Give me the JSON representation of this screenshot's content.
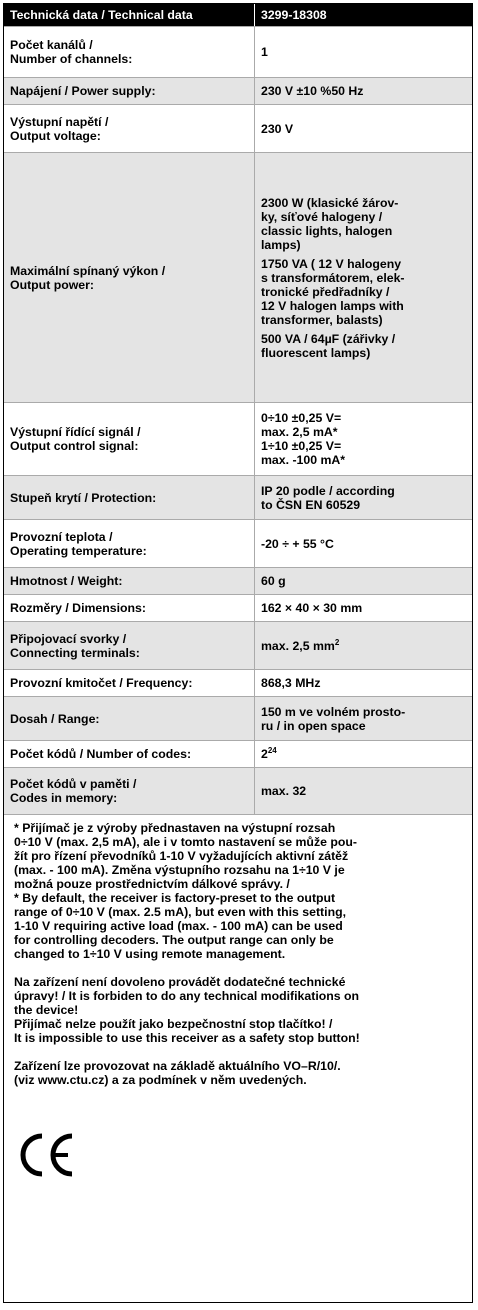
{
  "header": [
    "Technická data / Technical data",
    "3299-18308"
  ],
  "rows": [
    {
      "label": "Počet kanálů /\nNumber of channels:",
      "value": [
        "1"
      ]
    },
    {
      "label": "Napájení / Power supply:",
      "value": [
        "230 V ±10 %50 Hz"
      ]
    },
    {
      "label": "Výstupní napětí /\nOutput voltage:",
      "value": [
        "230 V"
      ]
    },
    {
      "label": "Maximální spínaný výkon /\nOutput power:",
      "value": [
        "2300 W (klasické žárov-\nky, síťové halogeny /\nclassic lights, halogen\nlamps)",
        "1750 VA ( 12 V halogeny\ns transformátorem, elek-\ntronické předřadníky /\n12 V halogen lamps with\ntransformer, balasts)",
        "500 VA / 64µF (zářivky /\nfluorescent lamps)"
      ]
    },
    {
      "label": "Výstupní řídící signál /\nOutput control signal:",
      "value": [
        "0÷10 ±0,25 V=\nmax. 2,5 mA*\n1÷10 ±0,25 V=\nmax. -100 mA*"
      ]
    },
    {
      "label": "Stupeň krytí / Protection:",
      "value": [
        "IP 20 podle / according\nto ČSN EN 60529"
      ]
    },
    {
      "label": "Provozní teplota /\nOperating temperature:",
      "value": [
        "-20 ÷ + 55 °C"
      ]
    },
    {
      "label": "Hmotnost / Weight:",
      "value": [
        "60 g"
      ]
    },
    {
      "label": "Rozměry / Dimensions:",
      "value": [
        "162 × 40 × 30 mm"
      ]
    },
    {
      "label": "Připojovací svorky /\nConnecting terminals:",
      "value": [
        {
          "text": "max. 2,5 mm",
          "sup": "2"
        }
      ]
    },
    {
      "label": "Provozní kmitočet / Frequency:",
      "value": [
        "868,3 MHz"
      ]
    },
    {
      "label": "Dosah / Range:",
      "value": [
        "150 m ve volném prosto-\nru / in open space"
      ]
    },
    {
      "label": "Počet kódů / Number of codes:",
      "value": [
        {
          "text": "2",
          "sup": "24"
        }
      ]
    },
    {
      "label": "Počet kódů v paměti /\nCodes in memory:",
      "value": [
        "max. 32"
      ]
    }
  ],
  "notes": [
    "* Přijímač je z výroby přednastaven na výstupní rozsah\n0÷10 V (max. 2,5 mA), ale i v tomto nastavení se může pou-\nžít pro řízení převodníků 1-10 V vyžadujících aktivní zátěž\n(max. - 100 mA). Změna výstupního rozsahu na 1÷10 V je\nmožná pouze prostřednictvím dálkové správy. /\n* By default, the receiver is factory-preset to the output\nrange of 0÷10 V (max. 2.5 mA), but even with this setting,\n1-10 V requiring active load (max. - 100 mA) can be used\nfor controlling decoders. The output range can only be\nchanged to 1÷10 V using remote management.",
    "Na zařízení není dovoleno provádět dodatečné technické\núpravy! / It is forbiden to do any technical modifikations on\nthe device!\nPřijímač nelze použít jako bezpečnostní stop tlačítko! /\nIt is impossible to use this receiver as a safety stop button!",
    "Zařízení lze provozovat na základě aktuálního VO–R/10/.\n(viz www.ctu.cz) a za podmínek v něm uvedených."
  ]
}
